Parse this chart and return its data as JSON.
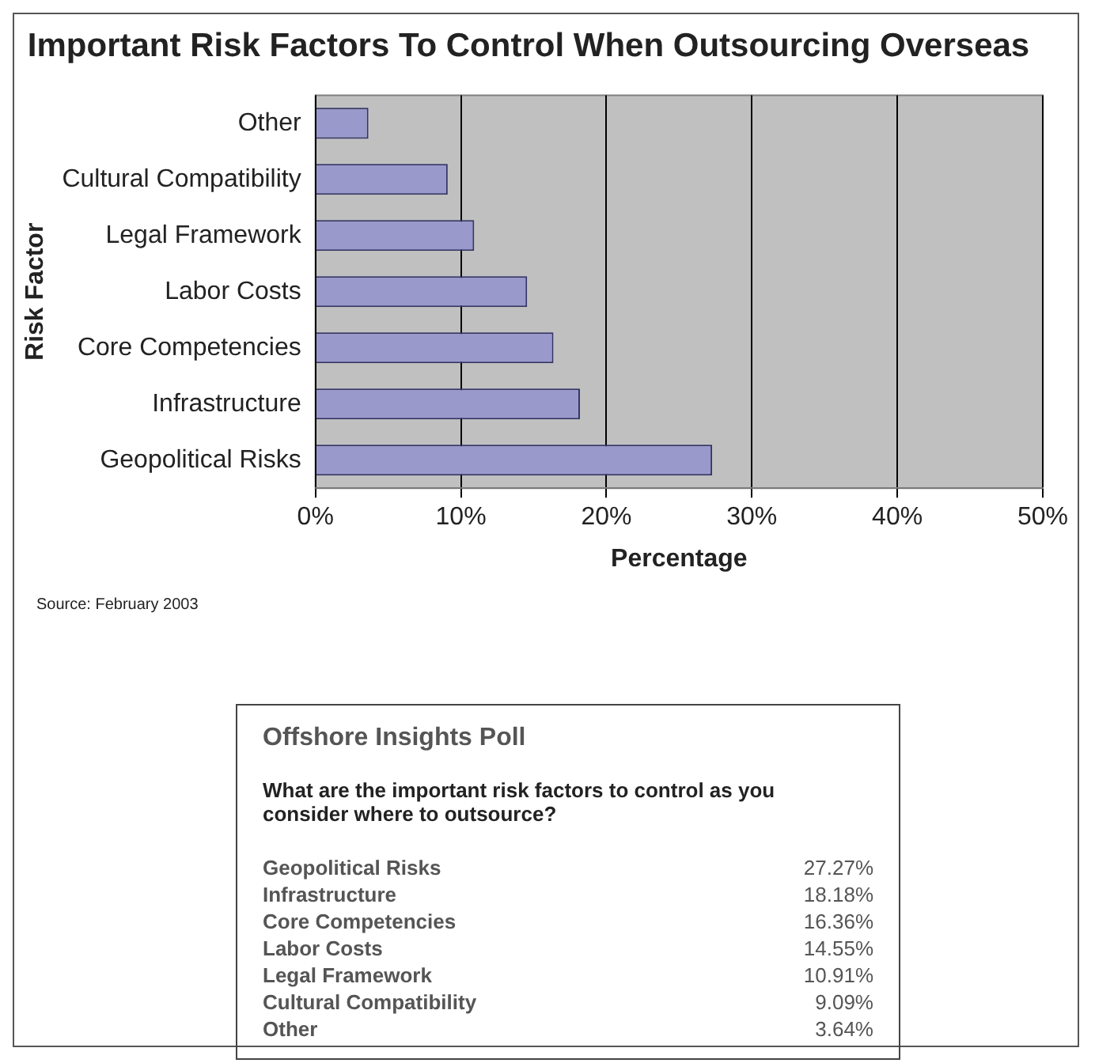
{
  "chart_data": [
    {
      "type": "bar",
      "orientation": "horizontal",
      "title": "Important Risk Factors To Control When Outsourcing Overseas",
      "xlabel": "Percentage",
      "ylabel": "Risk Factor",
      "categories": [
        "Other",
        "Cultural Compatibility",
        "Legal Framework",
        "Labor Costs",
        "Core Competencies",
        "Infrastructure",
        "Geopolitical Risks"
      ],
      "values": [
        3.64,
        9.09,
        10.91,
        14.55,
        16.36,
        18.18,
        27.27
      ],
      "color": "#9999cc",
      "xlim": [
        0,
        50
      ],
      "xticks": [
        {
          "value": 0,
          "label": "0%"
        },
        {
          "value": 10,
          "label": "10%"
        },
        {
          "value": 20,
          "label": "20%"
        },
        {
          "value": 30,
          "label": "30%"
        },
        {
          "value": 40,
          "label": "40%"
        },
        {
          "value": 50,
          "label": "50%"
        }
      ],
      "grid": "x",
      "legend": false,
      "annotations": [
        "Source: February 2003"
      ]
    },
    {
      "type": "other",
      "title": "Offshore Insights Poll",
      "subtitle": "What are the important risk factors to control as you consider where to outsource?",
      "annotations": [
        "Geopolitical Risks",
        "27.27%",
        "Infrastructure",
        "18.18%",
        "Core Competencies",
        "16.36%",
        "Labor Costs",
        "14.55%",
        "Legal Framework",
        "10.91%",
        "Cultural Compatibility",
        "9.09%",
        "Other",
        "3.64%"
      ]
    }
  ]
}
